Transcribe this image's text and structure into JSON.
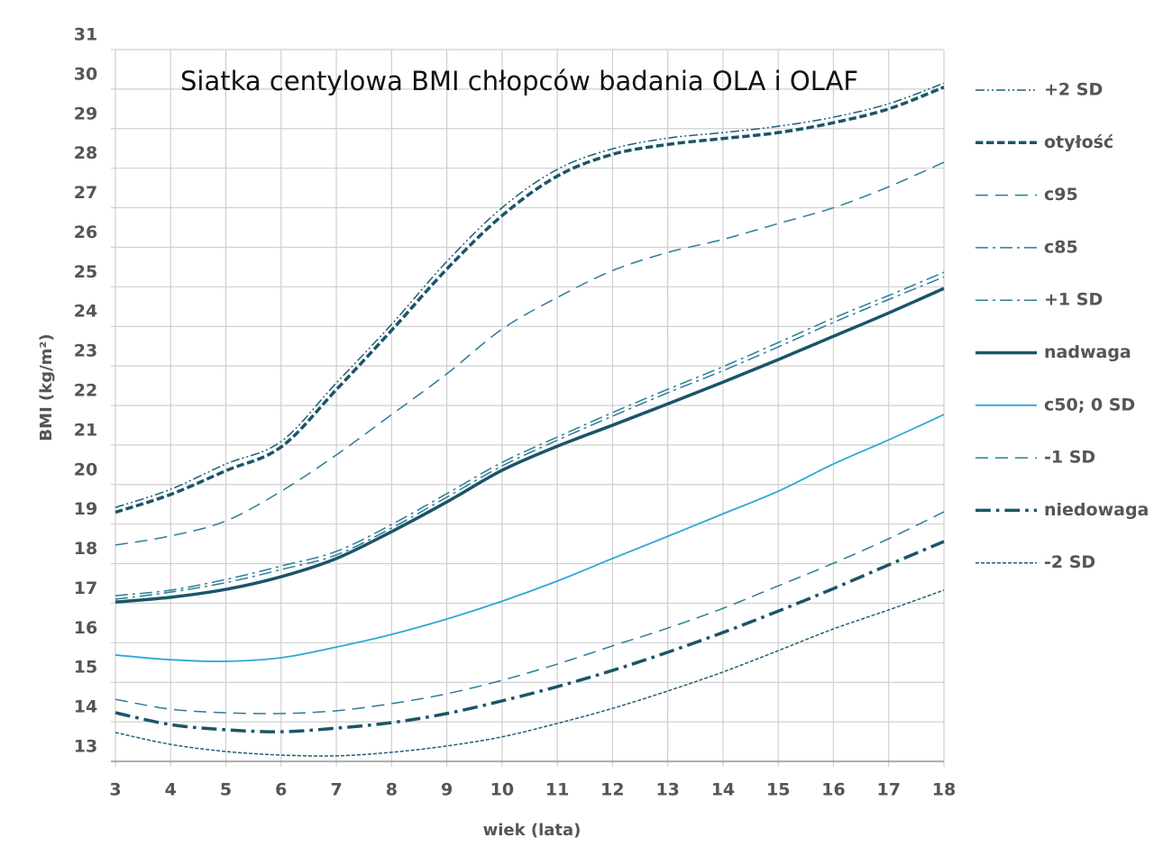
{
  "chart_data": {
    "type": "line",
    "title": "Siatka centylowa BMI chłopców badania OLA i OLAF",
    "x_label": "wiek (lata)",
    "y_label": "BMI (kg/m²)",
    "x": [
      3,
      4,
      5,
      6,
      7,
      8,
      9,
      10,
      11,
      12,
      13,
      14,
      15,
      16,
      17,
      18
    ],
    "xlim": [
      3,
      18
    ],
    "xticks": [
      3,
      4,
      5,
      6,
      7,
      8,
      9,
      10,
      11,
      12,
      13,
      14,
      15,
      16,
      17,
      18
    ],
    "ylim": [
      13,
      31
    ],
    "yticks": [
      13,
      14,
      15,
      16,
      17,
      18,
      19,
      20,
      21,
      22,
      23,
      24,
      25,
      26,
      27,
      28,
      29,
      30,
      31
    ],
    "grid": true,
    "legend": "right",
    "series": [
      {
        "name": "+2 SD",
        "color": "#1f5f74",
        "line_style": "dashdotdot",
        "linewidth": 1.5,
        "values": [
          19.42,
          19.88,
          20.52,
          21.09,
          22.57,
          24.05,
          25.64,
          27.0,
          27.97,
          28.49,
          28.76,
          28.9,
          29.06,
          29.29,
          29.63,
          30.15
        ]
      },
      {
        "name": "otyłość",
        "color": "#1a5568",
        "line_style": "dashed",
        "linewidth": 3.5,
        "values": [
          19.3,
          19.75,
          20.35,
          20.95,
          22.4,
          23.9,
          25.45,
          26.8,
          27.8,
          28.35,
          28.6,
          28.75,
          28.9,
          29.15,
          29.5,
          30.05
        ]
      },
      {
        "name": "c95",
        "color": "#2a7c98",
        "line_style": "longdash",
        "linewidth": 1.5,
        "values": [
          18.47,
          18.7,
          19.08,
          19.83,
          20.75,
          21.77,
          22.8,
          23.93,
          24.73,
          25.41,
          25.87,
          26.2,
          26.6,
          27.0,
          27.53,
          28.15
        ]
      },
      {
        "name": "c85",
        "color": "#2a7c98",
        "line_style": "dashdot",
        "linewidth": 1.5,
        "values": [
          17.19,
          17.33,
          17.6,
          17.94,
          18.31,
          18.99,
          19.77,
          20.56,
          21.2,
          21.82,
          22.41,
          22.98,
          23.59,
          24.21,
          24.78,
          25.37
        ]
      },
      {
        "name": "+1 SD",
        "color": "#2a7c98",
        "line_style": "dashdot",
        "linewidth": 1.5,
        "values": [
          17.1,
          17.28,
          17.52,
          17.85,
          18.22,
          18.9,
          19.68,
          20.47,
          21.12,
          21.73,
          22.32,
          22.88,
          23.48,
          24.1,
          24.68,
          25.25
        ]
      },
      {
        "name": "nadwaga",
        "color": "#1a5568",
        "line_style": "solid",
        "linewidth": 3.5,
        "values": [
          17.03,
          17.15,
          17.35,
          17.67,
          18.13,
          18.81,
          19.56,
          20.36,
          20.97,
          21.5,
          22.04,
          22.59,
          23.16,
          23.75,
          24.34,
          24.96
        ]
      },
      {
        "name": "c50; 0 SD",
        "color": "#2ea9d3",
        "line_style": "solid",
        "linewidth": 1.8,
        "values": [
          15.69,
          15.57,
          15.53,
          15.62,
          15.89,
          16.21,
          16.6,
          17.05,
          17.56,
          18.13,
          18.69,
          19.26,
          19.83,
          20.52,
          21.13,
          21.77
        ]
      },
      {
        "name": "-1 SD",
        "color": "#2a7c98",
        "line_style": "longdash",
        "linewidth": 1.5,
        "values": [
          14.57,
          14.32,
          14.23,
          14.21,
          14.28,
          14.46,
          14.71,
          15.05,
          15.46,
          15.92,
          16.37,
          16.87,
          17.44,
          18.01,
          18.63,
          19.31
        ]
      },
      {
        "name": "niedowaga",
        "color": "#1a5568",
        "line_style": "dashdot",
        "linewidth": 3.5,
        "values": [
          14.23,
          13.93,
          13.8,
          13.75,
          13.84,
          13.98,
          14.21,
          14.53,
          14.89,
          15.3,
          15.76,
          16.26,
          16.8,
          17.37,
          17.97,
          18.56
        ]
      },
      {
        "name": "-2 SD",
        "color": "#1f5f74",
        "line_style": "dotted",
        "linewidth": 1.5,
        "values": [
          13.73,
          13.43,
          13.25,
          13.16,
          13.14,
          13.23,
          13.39,
          13.62,
          13.96,
          14.34,
          14.78,
          15.26,
          15.8,
          16.35,
          16.83,
          17.33
        ]
      }
    ]
  }
}
